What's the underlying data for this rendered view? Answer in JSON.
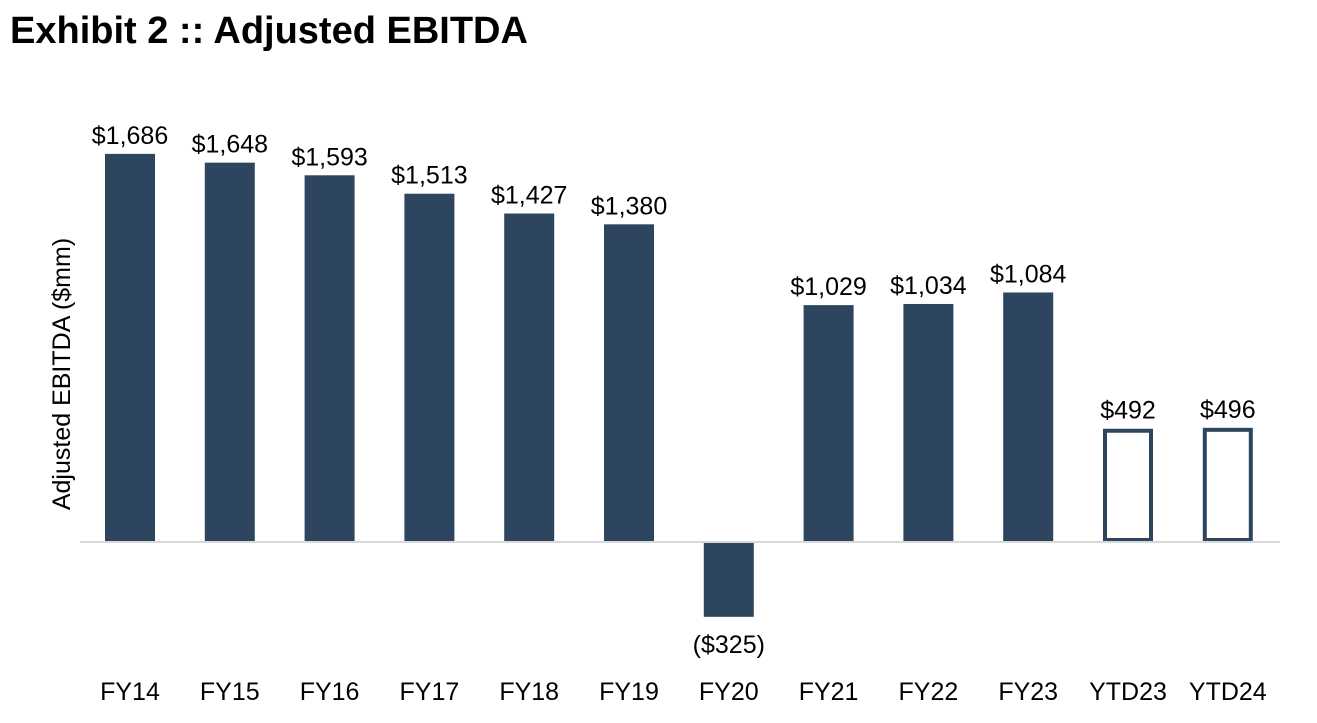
{
  "title": "Exhibit 2 :: Adjusted EBITDA",
  "colors": {
    "bar_fill": "#2d455e",
    "baseline": "#d9d9d9",
    "text": "#000000"
  },
  "chart_data": {
    "type": "bar",
    "title": "",
    "xlabel": "",
    "ylabel": "Adjusted EBITDA ($mm)",
    "categories": [
      "FY14",
      "FY15",
      "FY16",
      "FY17",
      "FY18",
      "FY19",
      "FY20",
      "FY21",
      "FY22",
      "FY23",
      "YTD23",
      "YTD24"
    ],
    "values": [
      1686,
      1648,
      1593,
      1513,
      1427,
      1380,
      -325,
      1029,
      1034,
      1084,
      492,
      496
    ],
    "data_labels": [
      "$1,686",
      "$1,648",
      "$1,593",
      "$1,513",
      "$1,427",
      "$1,380",
      "($325)",
      "$1,029",
      "$1,034",
      "$1,084",
      "$492",
      "$496"
    ],
    "bar_style": [
      "filled",
      "filled",
      "filled",
      "filled",
      "filled",
      "filled",
      "filled",
      "filled",
      "filled",
      "filled",
      "outline",
      "outline"
    ],
    "ylim": [
      -360,
      1800
    ],
    "grid": false,
    "y_ticks": "none"
  }
}
